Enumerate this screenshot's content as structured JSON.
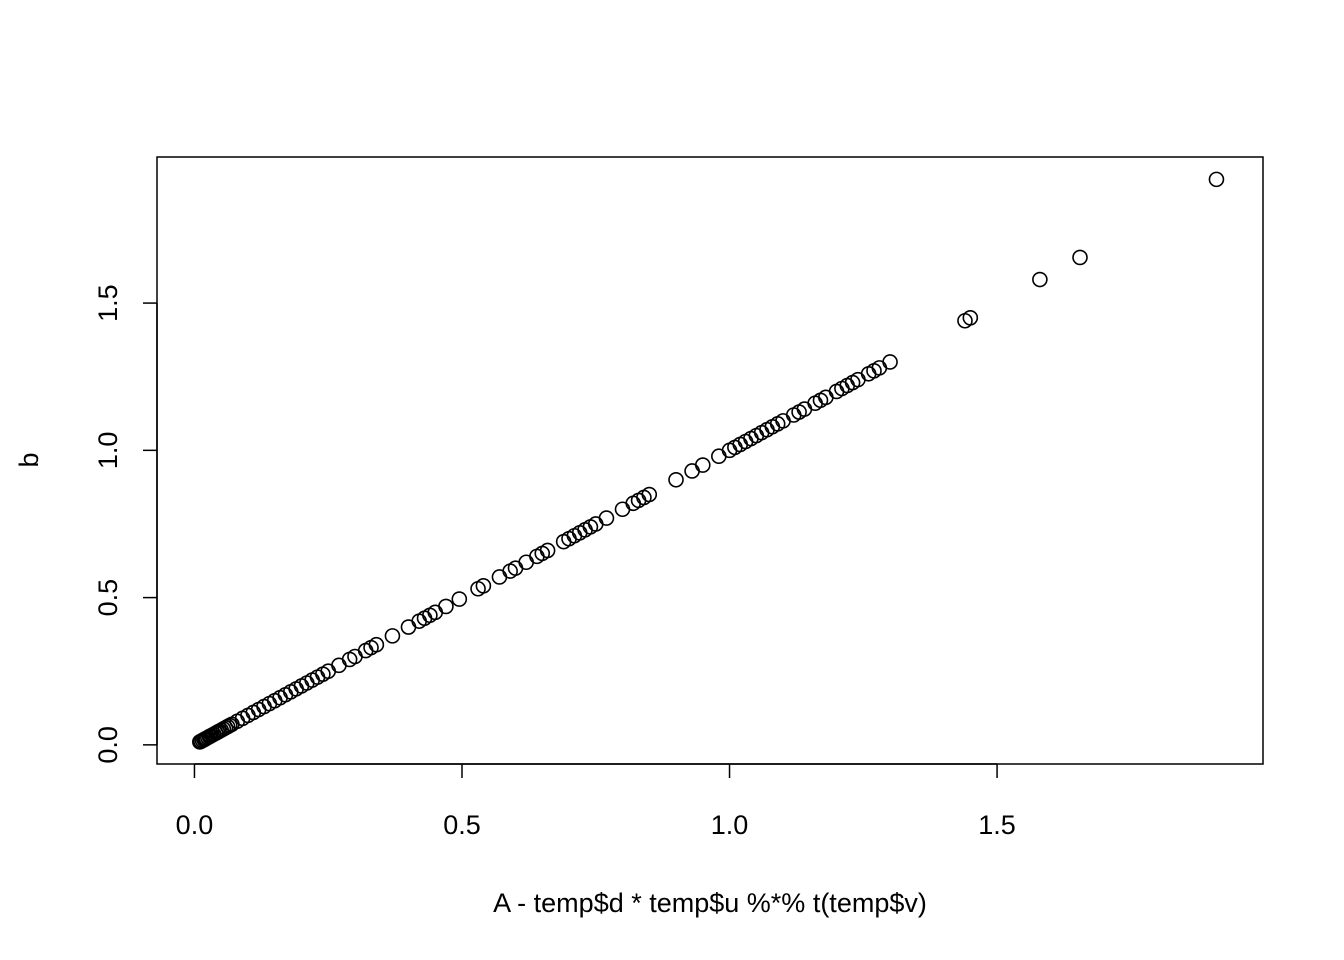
{
  "chart_data": {
    "type": "scatter",
    "xlabel": "A - temp$d * temp$u %*% t(temp$v)",
    "ylabel": "b",
    "xlim": [
      -0.07,
      1.997
    ],
    "ylim": [
      -0.065,
      1.996
    ],
    "x_ticks": [
      {
        "value": 0.0,
        "label": "0.0"
      },
      {
        "value": 0.5,
        "label": "0.5"
      },
      {
        "value": 1.0,
        "label": "1.0"
      },
      {
        "value": 1.5,
        "label": "1.5"
      }
    ],
    "y_ticks": [
      {
        "value": 0.0,
        "label": "0.0"
      },
      {
        "value": 0.5,
        "label": "0.5"
      },
      {
        "value": 1.0,
        "label": "1.0"
      },
      {
        "value": 1.5,
        "label": "1.5"
      }
    ],
    "marker": "open-circle",
    "points": [
      [
        0.01,
        0.01
      ],
      [
        0.012,
        0.012
      ],
      [
        0.015,
        0.015
      ],
      [
        0.018,
        0.018
      ],
      [
        0.02,
        0.02
      ],
      [
        0.022,
        0.022
      ],
      [
        0.025,
        0.025
      ],
      [
        0.028,
        0.028
      ],
      [
        0.03,
        0.03
      ],
      [
        0.033,
        0.033
      ],
      [
        0.036,
        0.036
      ],
      [
        0.04,
        0.04
      ],
      [
        0.043,
        0.043
      ],
      [
        0.046,
        0.046
      ],
      [
        0.05,
        0.05
      ],
      [
        0.054,
        0.054
      ],
      [
        0.058,
        0.058
      ],
      [
        0.062,
        0.062
      ],
      [
        0.066,
        0.066
      ],
      [
        0.07,
        0.07
      ],
      [
        0.08,
        0.08
      ],
      [
        0.09,
        0.09
      ],
      [
        0.1,
        0.1
      ],
      [
        0.11,
        0.11
      ],
      [
        0.12,
        0.12
      ],
      [
        0.13,
        0.13
      ],
      [
        0.14,
        0.14
      ],
      [
        0.15,
        0.15
      ],
      [
        0.16,
        0.16
      ],
      [
        0.17,
        0.17
      ],
      [
        0.18,
        0.18
      ],
      [
        0.19,
        0.19
      ],
      [
        0.2,
        0.2
      ],
      [
        0.21,
        0.21
      ],
      [
        0.22,
        0.22
      ],
      [
        0.23,
        0.23
      ],
      [
        0.24,
        0.24
      ],
      [
        0.25,
        0.25
      ],
      [
        0.27,
        0.27
      ],
      [
        0.29,
        0.29
      ],
      [
        0.3,
        0.3
      ],
      [
        0.32,
        0.32
      ],
      [
        0.33,
        0.33
      ],
      [
        0.34,
        0.34
      ],
      [
        0.37,
        0.37
      ],
      [
        0.4,
        0.4
      ],
      [
        0.42,
        0.42
      ],
      [
        0.43,
        0.43
      ],
      [
        0.44,
        0.44
      ],
      [
        0.45,
        0.45
      ],
      [
        0.47,
        0.47
      ],
      [
        0.495,
        0.495
      ],
      [
        0.53,
        0.53
      ],
      [
        0.54,
        0.54
      ],
      [
        0.57,
        0.57
      ],
      [
        0.59,
        0.59
      ],
      [
        0.6,
        0.6
      ],
      [
        0.62,
        0.62
      ],
      [
        0.64,
        0.64
      ],
      [
        0.65,
        0.65
      ],
      [
        0.66,
        0.66
      ],
      [
        0.69,
        0.69
      ],
      [
        0.7,
        0.7
      ],
      [
        0.71,
        0.71
      ],
      [
        0.72,
        0.72
      ],
      [
        0.73,
        0.73
      ],
      [
        0.74,
        0.74
      ],
      [
        0.75,
        0.75
      ],
      [
        0.77,
        0.77
      ],
      [
        0.8,
        0.8
      ],
      [
        0.82,
        0.82
      ],
      [
        0.83,
        0.83
      ],
      [
        0.84,
        0.84
      ],
      [
        0.85,
        0.85
      ],
      [
        0.9,
        0.9
      ],
      [
        0.93,
        0.93
      ],
      [
        0.95,
        0.95
      ],
      [
        0.98,
        0.98
      ],
      [
        1.0,
        1.0
      ],
      [
        1.01,
        1.01
      ],
      [
        1.02,
        1.02
      ],
      [
        1.03,
        1.03
      ],
      [
        1.04,
        1.04
      ],
      [
        1.05,
        1.05
      ],
      [
        1.06,
        1.06
      ],
      [
        1.07,
        1.07
      ],
      [
        1.08,
        1.08
      ],
      [
        1.09,
        1.09
      ],
      [
        1.1,
        1.1
      ],
      [
        1.12,
        1.12
      ],
      [
        1.13,
        1.13
      ],
      [
        1.14,
        1.14
      ],
      [
        1.16,
        1.16
      ],
      [
        1.17,
        1.17
      ],
      [
        1.18,
        1.18
      ],
      [
        1.2,
        1.2
      ],
      [
        1.21,
        1.21
      ],
      [
        1.22,
        1.22
      ],
      [
        1.23,
        1.23
      ],
      [
        1.24,
        1.24
      ],
      [
        1.26,
        1.26
      ],
      [
        1.27,
        1.27
      ],
      [
        1.28,
        1.28
      ],
      [
        1.3,
        1.3
      ],
      [
        1.44,
        1.44
      ],
      [
        1.45,
        1.45
      ],
      [
        1.58,
        1.58
      ],
      [
        1.655,
        1.655
      ],
      [
        1.91,
        1.92
      ]
    ]
  }
}
